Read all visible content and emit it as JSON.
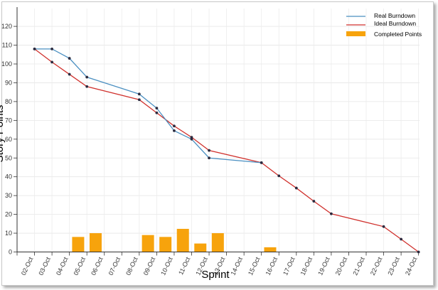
{
  "chart_data": {
    "type": "line",
    "title": "",
    "xlabel": "Sprint",
    "ylabel": "Story Points",
    "ylim": [
      0,
      130
    ],
    "yticks": [
      0,
      10,
      20,
      30,
      40,
      50,
      60,
      70,
      80,
      90,
      100,
      110,
      120
    ],
    "x_ticks": [
      "02-Oct",
      "03-Oct",
      "04-Oct",
      "05-Oct",
      "06-Oct",
      "07-Oct",
      "08-Oct",
      "09-Oct",
      "10-Oct",
      "11-Oct",
      "12-Oct",
      "13-Oct",
      "14-Oct",
      "15-Oct",
      "16-Oct",
      "17-Oct",
      "18-Oct",
      "19-Oct",
      "20-Oct",
      "21-Oct",
      "22-Oct",
      "23-Oct",
      "24-Oct"
    ],
    "grid": true,
    "legend_position": "top-right",
    "legend": [
      "Real Burndown",
      "Ideal Burndown",
      "Completed Points"
    ],
    "colors": {
      "real": "#4a8fc1",
      "ideal": "#d0312d",
      "completed": "#f7a30c",
      "marker": "#2b2b3f"
    },
    "series": [
      {
        "name": "Real Burndown",
        "type": "line",
        "points": [
          [
            1.0,
            108
          ],
          [
            2.0,
            108
          ],
          [
            3.0,
            103
          ],
          [
            4.0,
            93
          ],
          [
            7.0,
            84
          ],
          [
            8.0,
            76.5
          ],
          [
            9.0,
            64.5
          ],
          [
            10.0,
            60
          ],
          [
            11.0,
            50
          ],
          [
            14.0,
            47.5
          ]
        ]
      },
      {
        "name": "Ideal Burndown",
        "type": "line",
        "points": [
          [
            1.0,
            108
          ],
          [
            2.0,
            101
          ],
          [
            3.0,
            94.5
          ],
          [
            4.0,
            88
          ],
          [
            7.0,
            81
          ],
          [
            8.0,
            74
          ],
          [
            9.0,
            67
          ],
          [
            10.0,
            61
          ],
          [
            11.0,
            54
          ],
          [
            14.0,
            47.5
          ],
          [
            15.0,
            40.5
          ],
          [
            16.0,
            34
          ],
          [
            17.0,
            27
          ],
          [
            18.0,
            20.3
          ],
          [
            21.0,
            13.5
          ],
          [
            22.0,
            6.8
          ],
          [
            23.0,
            0
          ]
        ]
      },
      {
        "name": "Completed Points",
        "type": "bar",
        "points": [
          [
            3.0,
            8
          ],
          [
            4.0,
            10
          ],
          [
            7.0,
            9
          ],
          [
            8.0,
            8
          ],
          [
            9.0,
            12.3
          ],
          [
            10.0,
            4.5
          ],
          [
            11.0,
            10
          ],
          [
            14.0,
            2.5
          ]
        ]
      }
    ]
  }
}
